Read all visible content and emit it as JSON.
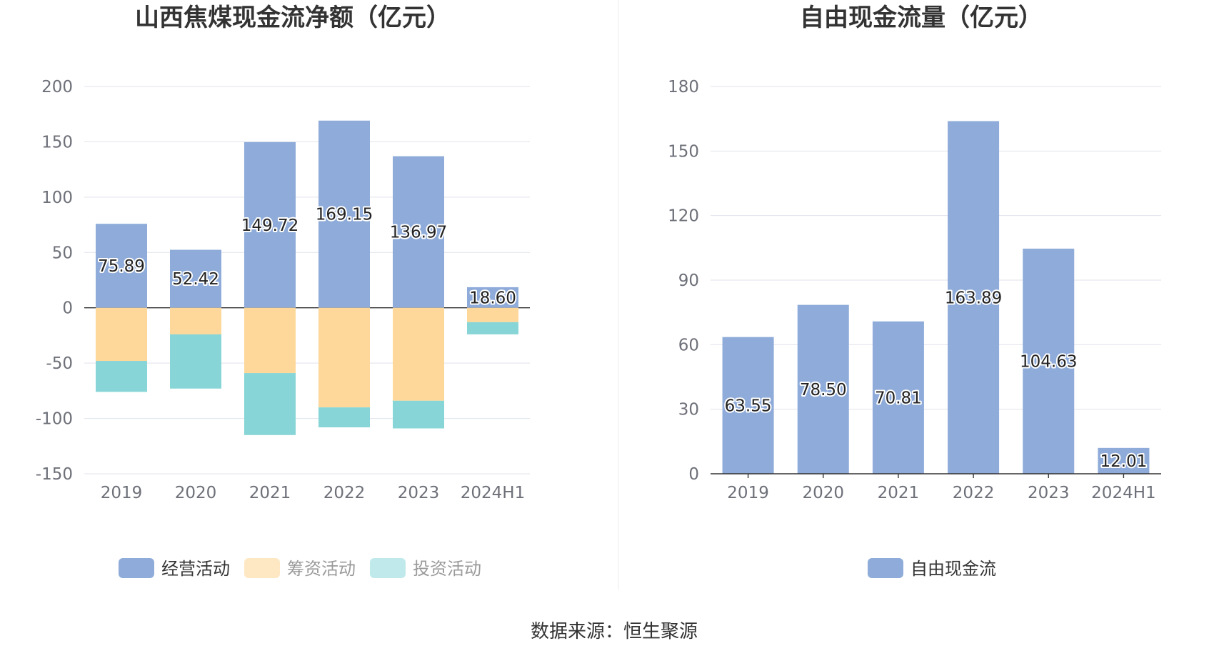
{
  "source": "数据来源：恒生聚源",
  "colors": {
    "operating": "#8eabd9",
    "financing": "#fed89b",
    "investing": "#87d5d6",
    "investing_legend": "#bfe9ea",
    "financing_legend": "#fee8c4",
    "grid": "#e0e3ec",
    "axis": "#333333"
  },
  "chart_data": [
    {
      "type": "bar",
      "stacked": true,
      "title": "山西焦煤现金流净额（亿元）",
      "categories": [
        "2019",
        "2020",
        "2021",
        "2022",
        "2023",
        "2024H1"
      ],
      "ylim": [
        -150,
        200
      ],
      "yticks": [
        "200",
        "150",
        "100",
        "50",
        "0",
        "-50",
        "-100",
        "-150"
      ],
      "series": [
        {
          "name": "经营活动",
          "color_key": "operating",
          "values": [
            75.89,
            52.42,
            149.72,
            169.15,
            136.97,
            18.6
          ],
          "labels": [
            "75.89",
            "52.42",
            "149.72",
            "169.15",
            "136.97",
            "18.60"
          ]
        },
        {
          "name": "筹资活动",
          "color_key": "financing",
          "values": [
            -48,
            -24,
            -59,
            -90,
            -84,
            -13
          ]
        },
        {
          "name": "投资活动",
          "color_key": "investing",
          "values": [
            -28,
            -49,
            -56,
            -18,
            -25,
            -11
          ]
        }
      ],
      "legend": [
        {
          "name": "经营活动",
          "color_key": "operating",
          "active": true
        },
        {
          "name": "筹资活动",
          "color_key": "financing_legend",
          "active": false
        },
        {
          "name": "投资活动",
          "color_key": "investing_legend",
          "active": false
        }
      ]
    },
    {
      "type": "bar",
      "title": "自由现金流量（亿元）",
      "categories": [
        "2019",
        "2020",
        "2021",
        "2022",
        "2023",
        "2024H1"
      ],
      "ylim": [
        0,
        180
      ],
      "yticks": [
        "180",
        "150",
        "120",
        "90",
        "60",
        "30",
        "0"
      ],
      "series": [
        {
          "name": "自由现金流",
          "color_key": "operating",
          "values": [
            63.55,
            78.5,
            70.81,
            163.89,
            104.63,
            12.01
          ],
          "labels": [
            "63.55",
            "78.50",
            "70.81",
            "163.89",
            "104.63",
            "12.01"
          ]
        }
      ],
      "legend": [
        {
          "name": "自由现金流",
          "color_key": "operating",
          "active": true
        }
      ]
    }
  ]
}
